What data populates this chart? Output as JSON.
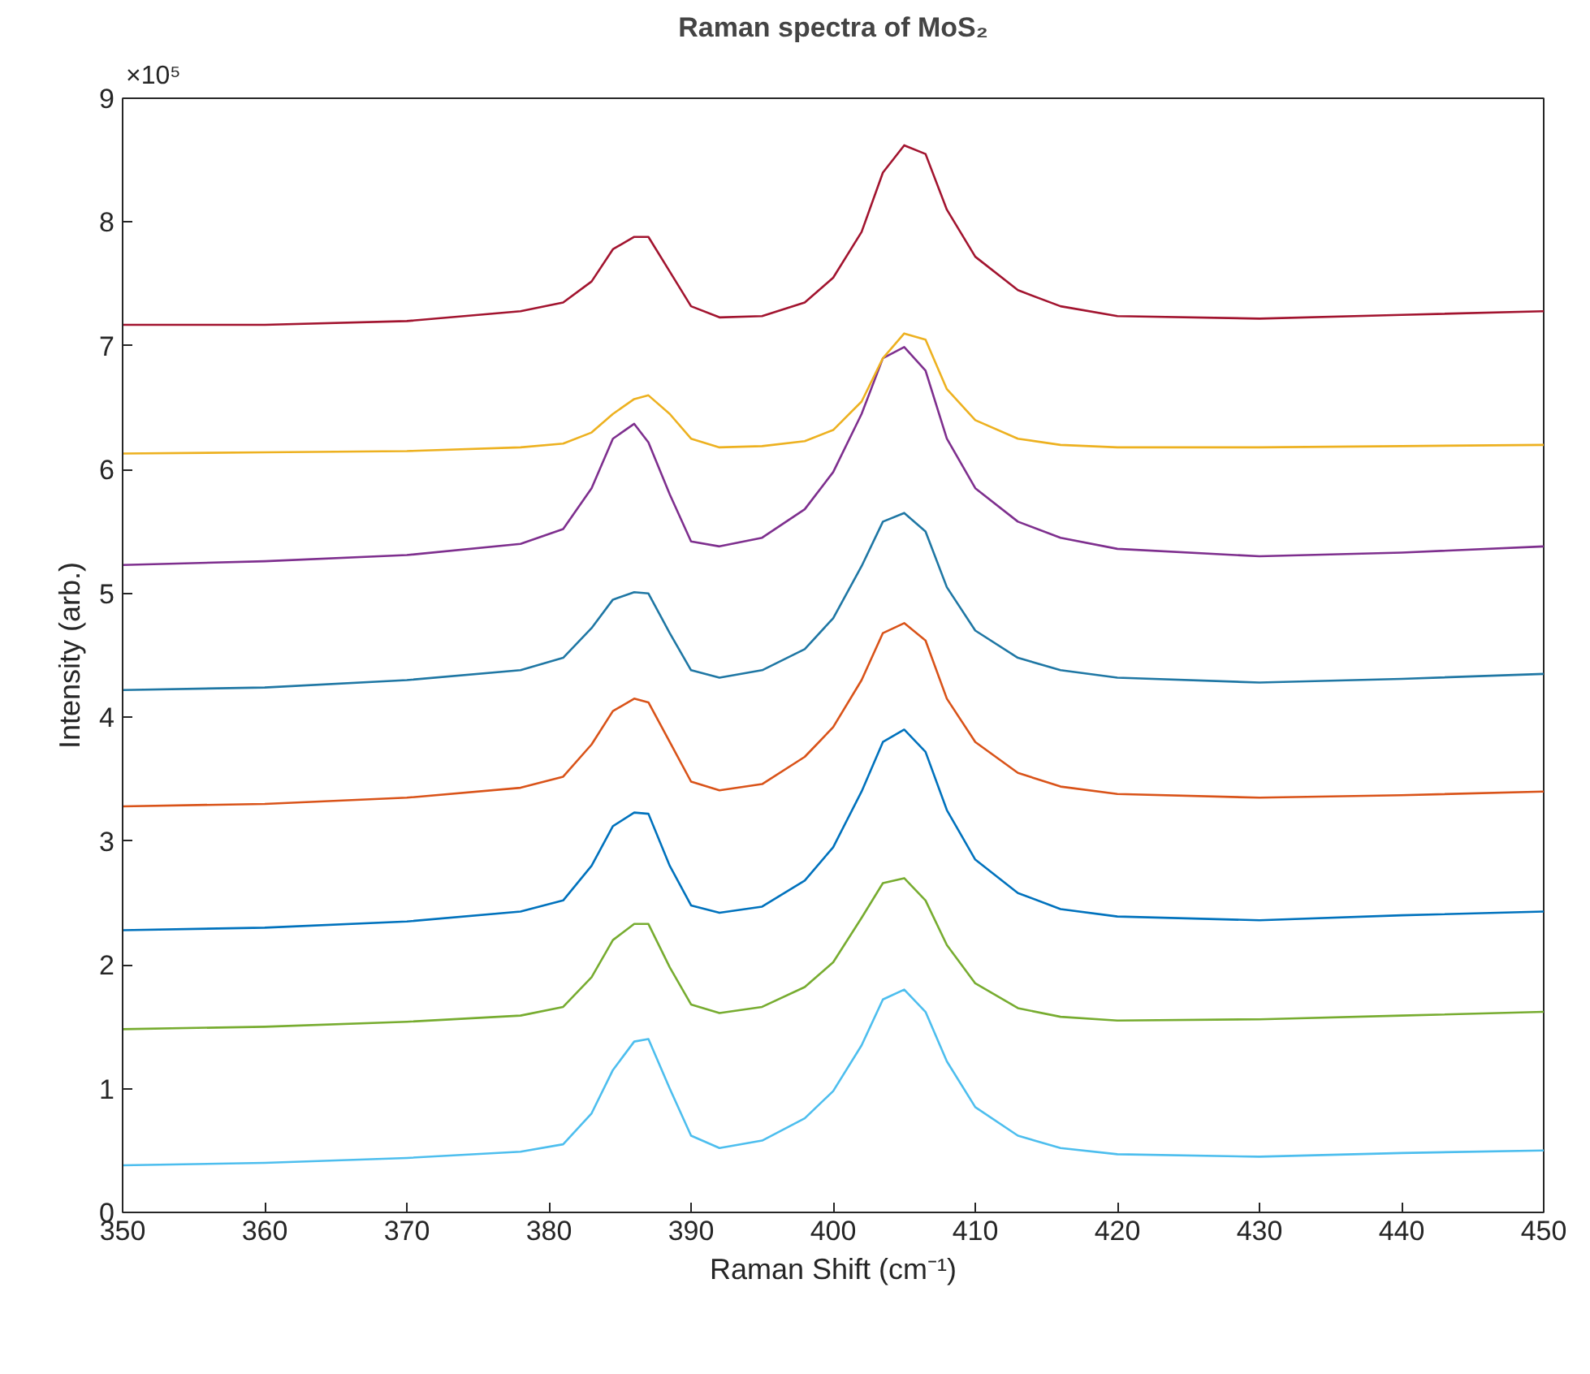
{
  "chart_data": {
    "type": "line",
    "title": "Raman spectra of MoS₂",
    "xlabel": "Raman Shift (cm⁻¹)",
    "ylabel": "Intensity (arb.)",
    "annotations": [
      "×10⁵"
    ],
    "x": [
      350,
      360,
      370,
      378,
      381,
      383,
      384.5,
      386,
      387,
      388.5,
      390,
      392,
      395,
      398,
      400,
      402,
      403.5,
      405,
      406.5,
      408,
      410,
      413,
      416,
      420,
      430,
      440,
      450
    ],
    "xlim": [
      350,
      450
    ],
    "xticks": [
      350,
      360,
      370,
      380,
      390,
      400,
      410,
      420,
      430,
      440,
      450
    ],
    "ylim": [
      0,
      9
    ],
    "yticks": [
      0,
      1,
      2,
      3,
      4,
      5,
      6,
      7,
      8,
      9
    ],
    "grid": false,
    "line_style": "solid",
    "series": [
      {
        "color": "#4dbeee",
        "values": [
          0.38,
          0.4,
          0.44,
          0.49,
          0.55,
          0.8,
          1.15,
          1.38,
          1.4,
          1.0,
          0.62,
          0.52,
          0.58,
          0.76,
          0.98,
          1.35,
          1.72,
          1.8,
          1.62,
          1.22,
          0.85,
          0.62,
          0.52,
          0.47,
          0.45,
          0.48,
          0.5
        ]
      },
      {
        "color": "#77ac30",
        "values": [
          1.48,
          1.5,
          1.54,
          1.59,
          1.66,
          1.9,
          2.2,
          2.33,
          2.33,
          1.98,
          1.68,
          1.61,
          1.66,
          1.82,
          2.02,
          2.38,
          2.66,
          2.7,
          2.52,
          2.16,
          1.85,
          1.65,
          1.58,
          1.55,
          1.56,
          1.59,
          1.62
        ]
      },
      {
        "color": "#0072bd",
        "values": [
          2.28,
          2.3,
          2.35,
          2.43,
          2.52,
          2.8,
          3.12,
          3.23,
          3.22,
          2.8,
          2.48,
          2.42,
          2.47,
          2.68,
          2.95,
          3.4,
          3.8,
          3.9,
          3.72,
          3.25,
          2.85,
          2.58,
          2.45,
          2.39,
          2.36,
          2.4,
          2.43
        ]
      },
      {
        "color": "#d95319",
        "values": [
          3.28,
          3.3,
          3.35,
          3.43,
          3.52,
          3.78,
          4.05,
          4.15,
          4.12,
          3.8,
          3.48,
          3.41,
          3.46,
          3.68,
          3.92,
          4.3,
          4.68,
          4.76,
          4.62,
          4.15,
          3.8,
          3.55,
          3.44,
          3.38,
          3.35,
          3.37,
          3.4
        ]
      },
      {
        "color": "#1f77a4",
        "values": [
          4.22,
          4.24,
          4.3,
          4.38,
          4.48,
          4.72,
          4.95,
          5.01,
          5.0,
          4.68,
          4.38,
          4.32,
          4.38,
          4.55,
          4.8,
          5.22,
          5.58,
          5.65,
          5.5,
          5.05,
          4.7,
          4.48,
          4.38,
          4.32,
          4.28,
          4.31,
          4.35
        ]
      },
      {
        "color": "#7e2f8e",
        "values": [
          5.23,
          5.26,
          5.31,
          5.4,
          5.52,
          5.85,
          6.25,
          6.37,
          6.22,
          5.8,
          5.42,
          5.38,
          5.45,
          5.68,
          5.98,
          6.45,
          6.9,
          6.99,
          6.8,
          6.25,
          5.85,
          5.58,
          5.45,
          5.36,
          5.3,
          5.33,
          5.38
        ]
      },
      {
        "color": "#edb120",
        "values": [
          6.13,
          6.14,
          6.15,
          6.18,
          6.21,
          6.3,
          6.45,
          6.57,
          6.6,
          6.45,
          6.25,
          6.18,
          6.19,
          6.23,
          6.32,
          6.55,
          6.9,
          7.1,
          7.05,
          6.65,
          6.4,
          6.25,
          6.2,
          6.18,
          6.18,
          6.19,
          6.2
        ]
      },
      {
        "color": "#a2142f",
        "values": [
          7.17,
          7.17,
          7.2,
          7.28,
          7.35,
          7.52,
          7.78,
          7.88,
          7.88,
          7.6,
          7.32,
          7.23,
          7.24,
          7.35,
          7.55,
          7.92,
          8.4,
          8.62,
          8.55,
          8.1,
          7.72,
          7.45,
          7.32,
          7.24,
          7.22,
          7.25,
          7.28
        ]
      }
    ]
  }
}
